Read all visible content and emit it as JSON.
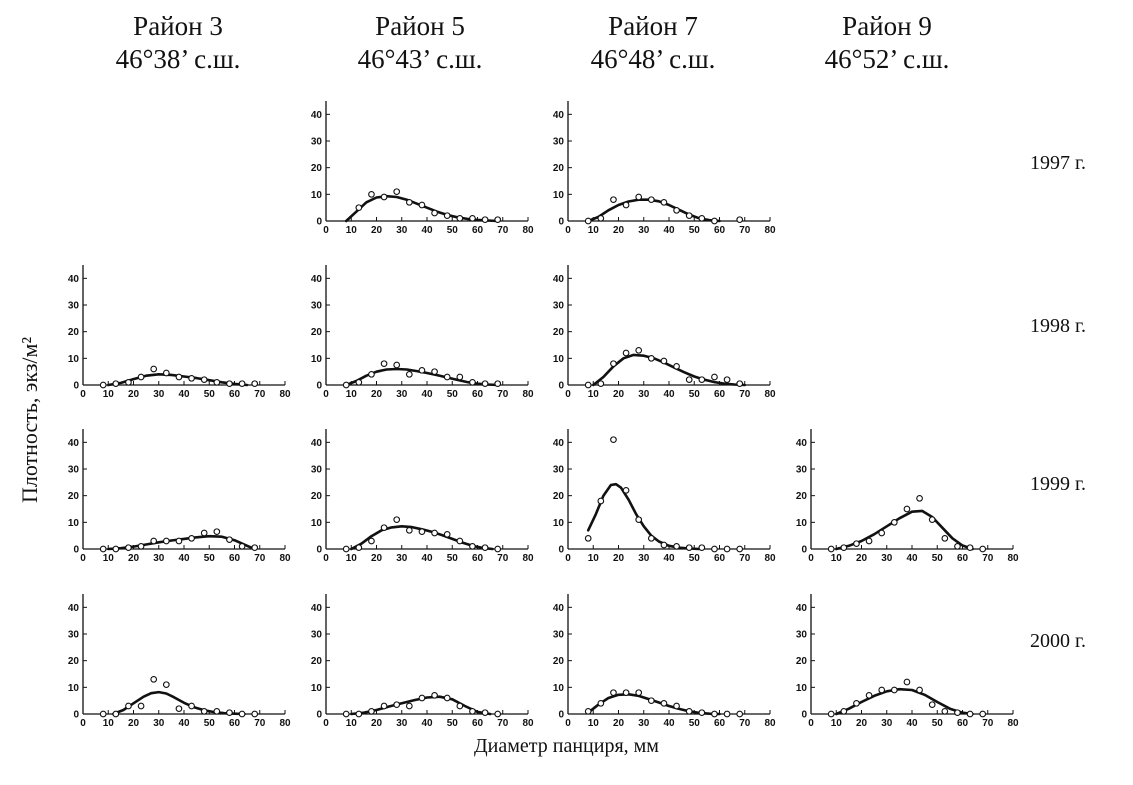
{
  "columns": [
    {
      "district": "Район 3",
      "latitude": "46°38’ с.ш."
    },
    {
      "district": "Район 5",
      "latitude": "46°43’ с.ш."
    },
    {
      "district": "Район 7",
      "latitude": "46°48’ с.ш."
    },
    {
      "district": "Район 9",
      "latitude": "46°52’ с.ш."
    }
  ],
  "rows": [
    "1997 г.",
    "1998 г.",
    "1999 г.",
    "2000 г."
  ],
  "ylabel": "Плотность, экз/м²",
  "xlabel": "Диаметр панциря, мм",
  "chart_data": [
    {
      "type": "scatter",
      "district": "Район 5",
      "year": "1997 г.",
      "xlim": [
        0,
        80
      ],
      "ylim": [
        0,
        45
      ],
      "xticks": [
        0,
        10,
        20,
        30,
        40,
        50,
        60,
        70,
        80
      ],
      "yticks": [
        0,
        10,
        20,
        30,
        40
      ],
      "points": {
        "x": [
          13,
          18,
          23,
          28,
          33,
          38,
          43,
          48,
          53,
          58,
          63,
          68
        ],
        "y": [
          5,
          10,
          9,
          11,
          7,
          6,
          3,
          2,
          1,
          1,
          0.5,
          0.5
        ]
      },
      "fit": {
        "x": [
          8,
          12,
          16,
          20,
          24,
          28,
          32,
          36,
          40,
          44,
          48,
          52,
          56,
          60,
          64,
          68
        ],
        "y": [
          0,
          3.5,
          7,
          8.8,
          9.3,
          9.0,
          8.0,
          6.5,
          5.0,
          3.5,
          2.3,
          1.4,
          0.8,
          0.4,
          0.2,
          0
        ]
      }
    },
    {
      "type": "scatter",
      "district": "Район 7",
      "year": "1997 г.",
      "xlim": [
        0,
        80
      ],
      "ylim": [
        0,
        45
      ],
      "xticks": [
        0,
        10,
        20,
        30,
        40,
        50,
        60,
        70,
        80
      ],
      "yticks": [
        0,
        10,
        20,
        30,
        40
      ],
      "points": {
        "x": [
          8,
          13,
          18,
          23,
          28,
          33,
          38,
          43,
          48,
          53,
          58,
          68
        ],
        "y": [
          0,
          1,
          8,
          6,
          9,
          8,
          7,
          4,
          2,
          1,
          0,
          0.5
        ]
      },
      "fit": {
        "x": [
          8,
          12,
          16,
          20,
          24,
          28,
          32,
          36,
          40,
          44,
          48,
          52,
          56,
          60
        ],
        "y": [
          0,
          1.5,
          4.0,
          6.0,
          7.3,
          8.0,
          8.0,
          7.4,
          6.0,
          4.2,
          2.4,
          1.0,
          0.3,
          0
        ]
      }
    },
    {
      "type": "scatter",
      "district": "Район 3",
      "year": "1998 г.",
      "xlim": [
        0,
        80
      ],
      "ylim": [
        0,
        45
      ],
      "xticks": [
        0,
        10,
        20,
        30,
        40,
        50,
        60,
        70,
        80
      ],
      "yticks": [
        0,
        10,
        20,
        30,
        40
      ],
      "points": {
        "x": [
          8,
          13,
          18,
          23,
          28,
          33,
          38,
          43,
          48,
          53,
          58,
          63,
          68
        ],
        "y": [
          0,
          0.5,
          1,
          3,
          6,
          4.5,
          3,
          2.5,
          2,
          1,
          0.5,
          0.5,
          0.5
        ]
      },
      "fit": {
        "x": [
          10,
          15,
          20,
          25,
          30,
          35,
          40,
          45,
          50,
          55,
          60,
          65
        ],
        "y": [
          0,
          0.8,
          2.2,
          3.5,
          4.0,
          3.8,
          3.2,
          2.6,
          1.8,
          1.0,
          0.4,
          0
        ]
      }
    },
    {
      "type": "scatter",
      "district": "Район 5",
      "year": "1998 г.",
      "xlim": [
        0,
        80
      ],
      "ylim": [
        0,
        45
      ],
      "xticks": [
        0,
        10,
        20,
        30,
        40,
        50,
        60,
        70,
        80
      ],
      "yticks": [
        0,
        10,
        20,
        30,
        40
      ],
      "points": {
        "x": [
          8,
          13,
          18,
          23,
          28,
          33,
          38,
          43,
          48,
          53,
          58,
          63,
          68
        ],
        "y": [
          0,
          1,
          4,
          8,
          7.5,
          4,
          5.5,
          5,
          3,
          3,
          1,
          0.5,
          0.5
        ]
      },
      "fit": {
        "x": [
          8,
          12,
          16,
          20,
          24,
          28,
          32,
          36,
          40,
          44,
          48,
          52,
          56,
          60,
          64,
          68
        ],
        "y": [
          0,
          1.5,
          3.5,
          5.0,
          5.8,
          6.0,
          5.8,
          5.2,
          4.5,
          3.7,
          2.8,
          1.9,
          1.1,
          0.5,
          0.2,
          0
        ]
      }
    },
    {
      "type": "scatter",
      "district": "Район 7",
      "year": "1998 г.",
      "xlim": [
        0,
        80
      ],
      "ylim": [
        0,
        45
      ],
      "xticks": [
        0,
        10,
        20,
        30,
        40,
        50,
        60,
        70,
        80
      ],
      "yticks": [
        0,
        10,
        20,
        30,
        40
      ],
      "points": {
        "x": [
          8,
          13,
          18,
          23,
          28,
          33,
          38,
          43,
          48,
          53,
          58,
          63,
          68
        ],
        "y": [
          0,
          0.5,
          8,
          12,
          13,
          10,
          9,
          7,
          2,
          2,
          3,
          2,
          0.5
        ]
      },
      "fit": {
        "x": [
          10,
          14,
          18,
          22,
          26,
          30,
          34,
          38,
          42,
          46,
          50,
          54,
          58,
          62,
          66,
          70
        ],
        "y": [
          0,
          3.0,
          7.0,
          10.0,
          11.3,
          11.0,
          10.0,
          8.4,
          6.6,
          4.8,
          3.2,
          2.0,
          1.1,
          0.5,
          0.2,
          0
        ]
      }
    },
    {
      "type": "scatter",
      "district": "Район 3",
      "year": "1999 г.",
      "xlim": [
        0,
        80
      ],
      "ylim": [
        0,
        45
      ],
      "xticks": [
        0,
        10,
        20,
        30,
        40,
        50,
        60,
        70,
        80
      ],
      "yticks": [
        0,
        10,
        20,
        30,
        40
      ],
      "points": {
        "x": [
          8,
          13,
          18,
          23,
          28,
          33,
          38,
          43,
          48,
          53,
          58,
          63,
          68
        ],
        "y": [
          0,
          0,
          0.5,
          1,
          3,
          3,
          3,
          4,
          6,
          6.5,
          3.5,
          1,
          0.5
        ]
      },
      "fit": {
        "x": [
          10,
          15,
          20,
          25,
          30,
          35,
          40,
          45,
          50,
          55,
          60,
          65,
          68
        ],
        "y": [
          0,
          0.3,
          0.9,
          1.7,
          2.5,
          3.2,
          3.8,
          4.4,
          4.8,
          4.6,
          3.3,
          1.2,
          0
        ]
      }
    },
    {
      "type": "scatter",
      "district": "Район 5",
      "year": "1999 г.",
      "xlim": [
        0,
        80
      ],
      "ylim": [
        0,
        45
      ],
      "xticks": [
        0,
        10,
        20,
        30,
        40,
        50,
        60,
        70,
        80
      ],
      "yticks": [
        0,
        10,
        20,
        30,
        40
      ],
      "points": {
        "x": [
          8,
          13,
          18,
          23,
          28,
          33,
          38,
          43,
          48,
          53,
          58,
          63,
          68
        ],
        "y": [
          0,
          0.5,
          3,
          8,
          11,
          7,
          6.5,
          6,
          5.5,
          3,
          1,
          0.5,
          0
        ]
      },
      "fit": {
        "x": [
          10,
          14,
          18,
          22,
          26,
          30,
          34,
          38,
          42,
          46,
          50,
          54,
          58,
          62,
          66
        ],
        "y": [
          0,
          2.0,
          4.8,
          7.0,
          8.1,
          8.5,
          8.2,
          7.4,
          6.4,
          5.2,
          3.8,
          2.4,
          1.2,
          0.4,
          0
        ]
      }
    },
    {
      "type": "scatter",
      "district": "Район 7",
      "year": "1999 г.",
      "xlim": [
        0,
        80
      ],
      "ylim": [
        0,
        45
      ],
      "xticks": [
        0,
        10,
        20,
        30,
        40,
        50,
        60,
        70,
        80
      ],
      "yticks": [
        0,
        10,
        20,
        30,
        40
      ],
      "points": {
        "x": [
          8,
          13,
          18,
          23,
          28,
          33,
          38,
          43,
          48,
          53,
          58,
          63,
          68
        ],
        "y": [
          4,
          18,
          41,
          22,
          11,
          4,
          1.5,
          1,
          0.5,
          0.5,
          0,
          0,
          0
        ]
      },
      "fit": {
        "x": [
          8,
          11,
          14,
          17,
          19,
          21,
          24,
          27,
          30,
          33,
          36,
          40,
          44,
          48,
          52
        ],
        "y": [
          7,
          13,
          20,
          24,
          24.3,
          23,
          18.5,
          13,
          8.5,
          5.0,
          2.8,
          1.2,
          0.5,
          0.2,
          0
        ]
      }
    },
    {
      "type": "scatter",
      "district": "Район 9",
      "year": "1999 г.",
      "xlim": [
        0,
        80
      ],
      "ylim": [
        0,
        45
      ],
      "xticks": [
        0,
        10,
        20,
        30,
        40,
        50,
        60,
        70,
        80
      ],
      "yticks": [
        0,
        10,
        20,
        30,
        40
      ],
      "points": {
        "x": [
          8,
          13,
          18,
          23,
          28,
          33,
          38,
          43,
          48,
          53,
          58,
          63,
          68
        ],
        "y": [
          0,
          0.5,
          2,
          3,
          6,
          10,
          15,
          19,
          11,
          4,
          1,
          0.5,
          0
        ]
      },
      "fit": {
        "x": [
          10,
          15,
          20,
          25,
          30,
          35,
          40,
          44,
          48,
          52,
          56,
          60,
          64
        ],
        "y": [
          0,
          1.2,
          3.0,
          5.5,
          8.5,
          11.5,
          14.0,
          14.3,
          12.0,
          8.0,
          4.0,
          1.3,
          0
        ]
      }
    },
    {
      "type": "scatter",
      "district": "Район 3",
      "year": "2000 г.",
      "xlim": [
        0,
        80
      ],
      "ylim": [
        0,
        45
      ],
      "xticks": [
        0,
        10,
        20,
        30,
        40,
        50,
        60,
        70,
        80
      ],
      "yticks": [
        0,
        10,
        20,
        30,
        40
      ],
      "points": {
        "x": [
          8,
          13,
          18,
          23,
          28,
          33,
          38,
          43,
          48,
          53,
          58,
          63,
          68
        ],
        "y": [
          0,
          0,
          3,
          3,
          13,
          11,
          2,
          3,
          1,
          1,
          0.5,
          0,
          0
        ]
      },
      "fit": {
        "x": [
          12,
          16,
          20,
          24,
          27,
          30,
          33,
          36,
          40,
          44,
          48,
          52,
          56,
          60,
          64
        ],
        "y": [
          0,
          1.5,
          4.0,
          6.5,
          7.8,
          8.2,
          7.7,
          6.3,
          4.2,
          2.5,
          1.4,
          0.7,
          0.3,
          0.1,
          0
        ]
      }
    },
    {
      "type": "scatter",
      "district": "Район 5",
      "year": "2000 г.",
      "xlim": [
        0,
        80
      ],
      "ylim": [
        0,
        45
      ],
      "xticks": [
        0,
        10,
        20,
        30,
        40,
        50,
        60,
        70,
        80
      ],
      "yticks": [
        0,
        10,
        20,
        30,
        40
      ],
      "points": {
        "x": [
          8,
          13,
          18,
          23,
          28,
          33,
          38,
          43,
          48,
          53,
          58,
          63,
          68
        ],
        "y": [
          0,
          0,
          1,
          3,
          3.5,
          3,
          6,
          7,
          6,
          3,
          1,
          0.5,
          0
        ]
      },
      "fit": {
        "x": [
          10,
          15,
          20,
          25,
          30,
          35,
          40,
          45,
          50,
          55,
          60,
          65
        ],
        "y": [
          0,
          0.5,
          1.5,
          2.8,
          4.0,
          5.2,
          6.2,
          6.5,
          5.5,
          3.0,
          0.8,
          0
        ]
      }
    },
    {
      "type": "scatter",
      "district": "Район 7",
      "year": "2000 г.",
      "xlim": [
        0,
        80
      ],
      "ylim": [
        0,
        45
      ],
      "xticks": [
        0,
        10,
        20,
        30,
        40,
        50,
        60,
        70,
        80
      ],
      "yticks": [
        0,
        10,
        20,
        30,
        40
      ],
      "points": {
        "x": [
          8,
          13,
          18,
          23,
          28,
          33,
          38,
          43,
          48,
          53,
          58,
          63,
          68
        ],
        "y": [
          1,
          4,
          8,
          8,
          8,
          5,
          4,
          3,
          1,
          0.5,
          0,
          0,
          0
        ]
      },
      "fit": {
        "x": [
          8,
          12,
          16,
          20,
          24,
          28,
          32,
          36,
          40,
          44,
          48,
          52,
          56,
          60
        ],
        "y": [
          0.5,
          3.5,
          6.0,
          7.2,
          7.4,
          6.8,
          5.6,
          4.3,
          3.0,
          1.9,
          1.0,
          0.4,
          0.1,
          0
        ]
      }
    },
    {
      "type": "scatter",
      "district": "Район 9",
      "year": "2000 г.",
      "xlim": [
        0,
        80
      ],
      "ylim": [
        0,
        45
      ],
      "xticks": [
        0,
        10,
        20,
        30,
        40,
        50,
        60,
        70,
        80
      ],
      "yticks": [
        0,
        10,
        20,
        30,
        40
      ],
      "points": {
        "x": [
          8,
          13,
          18,
          23,
          28,
          33,
          38,
          43,
          48,
          53,
          58,
          63,
          68
        ],
        "y": [
          0,
          1,
          4,
          7,
          9,
          9,
          12,
          9,
          3.5,
          1,
          0.5,
          0,
          0
        ]
      },
      "fit": {
        "x": [
          10,
          15,
          20,
          25,
          30,
          35,
          40,
          45,
          50,
          55,
          60,
          64
        ],
        "y": [
          0,
          2.0,
          4.5,
          6.8,
          8.5,
          9.3,
          9.0,
          7.2,
          4.5,
          2.0,
          0.5,
          0
        ]
      }
    }
  ]
}
